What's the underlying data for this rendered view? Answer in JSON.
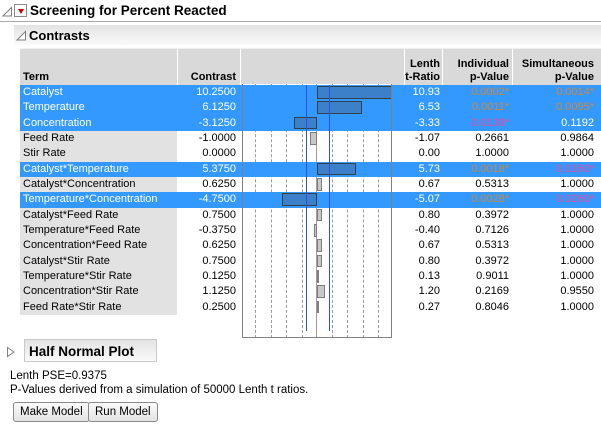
{
  "title": "Screening for Percent Reacted",
  "sections": {
    "contrasts": "Contrasts",
    "half_normal_plot": "Half Normal Plot"
  },
  "icons": {
    "red_triangle_menu": "▼",
    "disclosure_expanded": "◿",
    "disclosure_collapsed": "▷"
  },
  "colors": {
    "row_highlight": "#3399ff",
    "p_below_0_01": "#cd8737",
    "p_below_0_05": "#eb4b96",
    "bar_highlighted": "#3b80c8",
    "bar_normal": "#c8c8c8",
    "reference_line": "#2b50e2"
  },
  "table": {
    "headers": {
      "term": "Term",
      "contrast": "Contrast",
      "lenth_line1": "Lenth",
      "lenth_line2": "t-Ratio",
      "individual_line1": "Individual",
      "individual_line2": "p-Value",
      "simultaneous_line1": "Simultaneous",
      "simultaneous_line2": "p-Value"
    },
    "rows": [
      {
        "term": "Catalyst",
        "contrast": "10.2500",
        "t_ratio": "10.93",
        "individual_p": "0.0002*",
        "simultaneous_p": "0.0014*",
        "highlighted": true,
        "individual_p_color": "orange",
        "simultaneous_p_color": "orange"
      },
      {
        "term": "Temperature",
        "contrast": "6.1250",
        "t_ratio": "6.53",
        "individual_p": "0.0011*",
        "simultaneous_p": "0.0095*",
        "highlighted": true,
        "individual_p_color": "orange",
        "simultaneous_p_color": "orange"
      },
      {
        "term": "Concentration",
        "contrast": "-3.1250",
        "t_ratio": "-3.33",
        "individual_p": "0.0138*",
        "simultaneous_p": "0.1192",
        "highlighted": true,
        "individual_p_color": "pink",
        "simultaneous_p_color": null
      },
      {
        "term": "Feed Rate",
        "contrast": "-1.0000",
        "t_ratio": "-1.07",
        "individual_p": "0.2661",
        "simultaneous_p": "0.9864",
        "highlighted": false,
        "individual_p_color": null,
        "simultaneous_p_color": null
      },
      {
        "term": "Stir Rate",
        "contrast": "0.0000",
        "t_ratio": "0.00",
        "individual_p": "1.0000",
        "simultaneous_p": "1.0000",
        "highlighted": false,
        "individual_p_color": null,
        "simultaneous_p_color": null
      },
      {
        "term": "Catalyst*Temperature",
        "contrast": "5.3750",
        "t_ratio": "5.73",
        "individual_p": "0.0018*",
        "simultaneous_p": "0.0160*",
        "highlighted": true,
        "individual_p_color": "orange",
        "simultaneous_p_color": "pink"
      },
      {
        "term": "Catalyst*Concentration",
        "contrast": "0.6250",
        "t_ratio": "0.67",
        "individual_p": "0.5313",
        "simultaneous_p": "1.0000",
        "highlighted": false,
        "individual_p_color": null,
        "simultaneous_p_color": null
      },
      {
        "term": "Temperature*Concentration",
        "contrast": "-4.7500",
        "t_ratio": "-5.07",
        "individual_p": "0.0028*",
        "simultaneous_p": "0.0260*",
        "highlighted": true,
        "individual_p_color": "orange",
        "simultaneous_p_color": "pink"
      },
      {
        "term": "Catalyst*Feed Rate",
        "contrast": "0.7500",
        "t_ratio": "0.80",
        "individual_p": "0.3972",
        "simultaneous_p": "1.0000",
        "highlighted": false,
        "individual_p_color": null,
        "simultaneous_p_color": null
      },
      {
        "term": "Temperature*Feed Rate",
        "contrast": "-0.3750",
        "t_ratio": "-0.40",
        "individual_p": "0.7126",
        "simultaneous_p": "1.0000",
        "highlighted": false,
        "individual_p_color": null,
        "simultaneous_p_color": null
      },
      {
        "term": "Concentration*Feed Rate",
        "contrast": "0.6250",
        "t_ratio": "0.67",
        "individual_p": "0.5313",
        "simultaneous_p": "1.0000",
        "highlighted": false,
        "individual_p_color": null,
        "simultaneous_p_color": null
      },
      {
        "term": "Catalyst*Stir Rate",
        "contrast": "0.7500",
        "t_ratio": "0.80",
        "individual_p": "0.3972",
        "simultaneous_p": "1.0000",
        "highlighted": false,
        "individual_p_color": null,
        "simultaneous_p_color": null
      },
      {
        "term": "Temperature*Stir Rate",
        "contrast": "0.1250",
        "t_ratio": "0.13",
        "individual_p": "0.9011",
        "simultaneous_p": "1.0000",
        "highlighted": false,
        "individual_p_color": null,
        "simultaneous_p_color": null
      },
      {
        "term": "Concentration*Stir Rate",
        "contrast": "1.1250",
        "t_ratio": "1.20",
        "individual_p": "0.2169",
        "simultaneous_p": "0.9550",
        "highlighted": false,
        "individual_p_color": null,
        "simultaneous_p_color": null
      },
      {
        "term": "Feed Rate*Stir Rate",
        "contrast": "0.2500",
        "t_ratio": "0.27",
        "individual_p": "0.8046",
        "simultaneous_p": "1.0000",
        "highlighted": false,
        "individual_p_color": null,
        "simultaneous_p_color": null
      }
    ]
  },
  "footer": {
    "lenth_pse": "Lenth PSE=0.9375",
    "pvalues_note": "P-Values derived from a simulation of 50000 Lenth t ratios.",
    "make_model_label": "Make Model",
    "run_model_label": "Run Model"
  }
}
